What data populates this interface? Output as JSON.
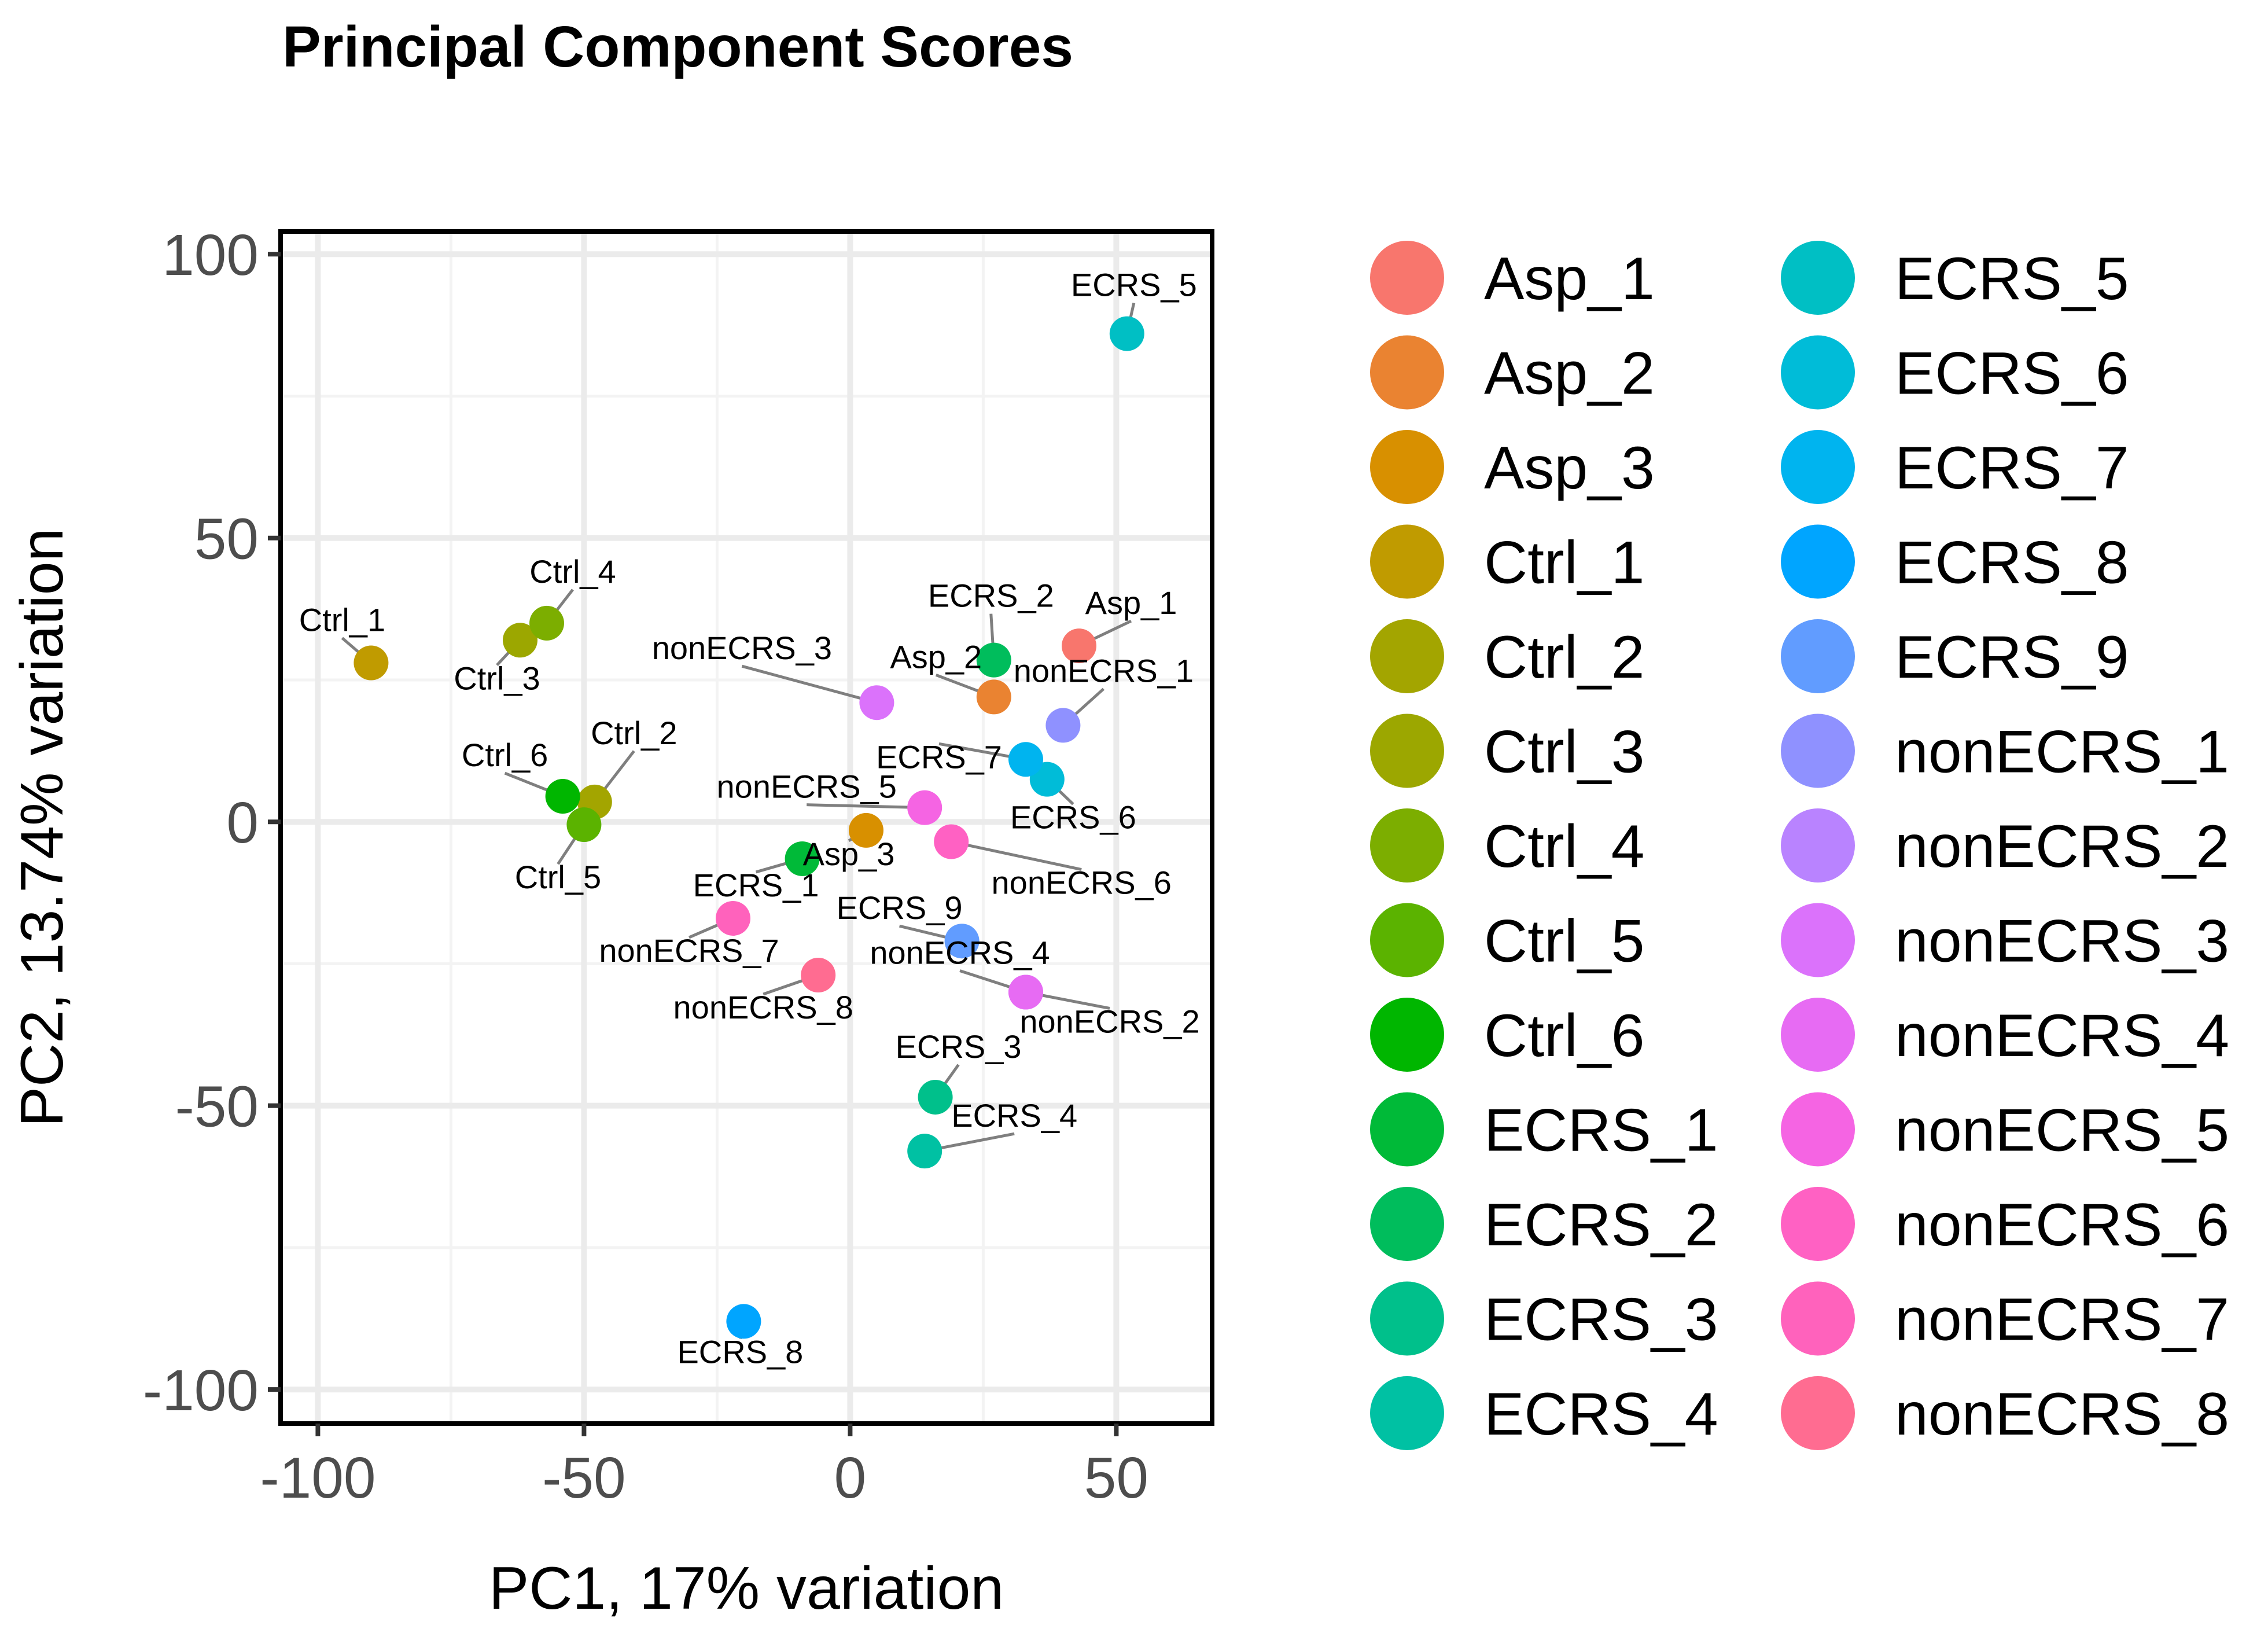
{
  "chart_data": {
    "type": "scatter",
    "title": "Principal Component Scores",
    "xlabel": "PC1, 17% variation",
    "ylabel": "PC2, 13.74% variation",
    "xlim": [
      -107,
      68
    ],
    "ylim": [
      -106,
      104
    ],
    "x_ticks": [
      -100,
      -50,
      0,
      50
    ],
    "y_ticks": [
      -100,
      -50,
      0,
      50,
      100
    ],
    "x_tick_labels": [
      "-100",
      "-50",
      "0",
      "50"
    ],
    "y_tick_labels": [
      "-100",
      "-50",
      "0",
      "50",
      "100"
    ],
    "grid": true,
    "legend_position": "right",
    "legend_columns": 2,
    "points": [
      {
        "name": "Asp_1",
        "x": 43,
        "y": 31,
        "color": "#F8766D"
      },
      {
        "name": "Asp_2",
        "x": 27,
        "y": 22,
        "color": "#EA8331"
      },
      {
        "name": "Asp_3",
        "x": 3,
        "y": -1.5,
        "color": "#D89000"
      },
      {
        "name": "Ctrl_1",
        "x": -90,
        "y": 28,
        "color": "#C09B00"
      },
      {
        "name": "Ctrl_2",
        "x": -48,
        "y": 3.5,
        "color": "#A3A500"
      },
      {
        "name": "Ctrl_3",
        "x": -62,
        "y": 32,
        "color": "#9CA700"
      },
      {
        "name": "Ctrl_4",
        "x": -57,
        "y": 35,
        "color": "#7CAE00"
      },
      {
        "name": "Ctrl_5",
        "x": -50,
        "y": -0.5,
        "color": "#5BB300"
      },
      {
        "name": "Ctrl_6",
        "x": -54,
        "y": 4.5,
        "color": "#00B600"
      },
      {
        "name": "ECRS_1",
        "x": -9,
        "y": -6.5,
        "color": "#00BA38"
      },
      {
        "name": "ECRS_2",
        "x": 27,
        "y": 28.5,
        "color": "#00BD5C"
      },
      {
        "name": "ECRS_3",
        "x": 16,
        "y": -48.5,
        "color": "#00C08B"
      },
      {
        "name": "ECRS_4",
        "x": 14,
        "y": -58,
        "color": "#00C1A3"
      },
      {
        "name": "ECRS_5",
        "x": 52,
        "y": 86,
        "color": "#00BFC4"
      },
      {
        "name": "ECRS_6",
        "x": 37,
        "y": 7.5,
        "color": "#00BCD8"
      },
      {
        "name": "ECRS_7",
        "x": 33,
        "y": 11,
        "color": "#00B4EF"
      },
      {
        "name": "ECRS_8",
        "x": -20,
        "y": -88,
        "color": "#00A5FF"
      },
      {
        "name": "ECRS_9",
        "x": 21,
        "y": -21,
        "color": "#619CFF"
      },
      {
        "name": "nonECRS_1",
        "x": 40,
        "y": 17,
        "color": "#8F91FF"
      },
      {
        "name": "nonECRS_2",
        "x": 33,
        "y": -30,
        "color": "#B983FF"
      },
      {
        "name": "nonECRS_3",
        "x": 5,
        "y": 21,
        "color": "#DB72FB"
      },
      {
        "name": "nonECRS_4",
        "x": 33,
        "y": -30,
        "color": "#E76BF3"
      },
      {
        "name": "nonECRS_5",
        "x": 14,
        "y": 2.5,
        "color": "#F564E3"
      },
      {
        "name": "nonECRS_6",
        "x": 19,
        "y": -3.5,
        "color": "#FF61C3"
      },
      {
        "name": "nonECRS_7",
        "x": -22,
        "y": -17,
        "color": "#FF62BC"
      },
      {
        "name": "nonECRS_8",
        "x": -6,
        "y": -27,
        "color": "#FF6C91"
      }
    ]
  }
}
